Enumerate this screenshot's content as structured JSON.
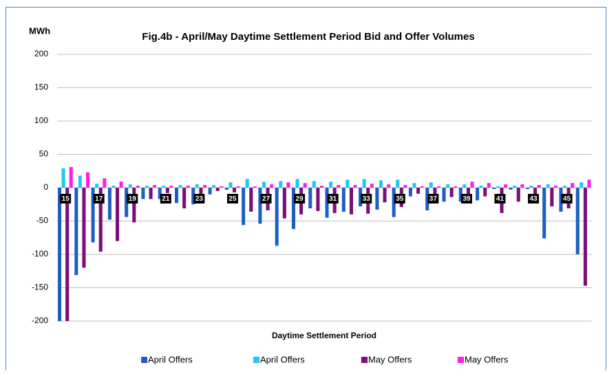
{
  "chart_data": {
    "type": "bar",
    "title": "Fig.4b - April/May Daytime Settlement Period Bid and Offer Volumes",
    "y_label": "MWh",
    "x_label": "Daytime Settlement Period",
    "categories": [
      "15",
      null,
      "17",
      null,
      "19",
      null,
      "21",
      null,
      "23",
      null,
      "25",
      null,
      "27",
      null,
      "29",
      null,
      "31",
      null,
      "33",
      null,
      "35",
      null,
      "37",
      null,
      "39",
      null,
      "41",
      null,
      "43",
      null,
      "45",
      null
    ],
    "series": [
      {
        "name": "April Offers",
        "color": "#1f5fc4",
        "values": [
          -200,
          -131,
          -82,
          -48,
          -44,
          -17,
          -17,
          -23,
          -25,
          -10,
          -3,
          -56,
          -54,
          -87,
          -62,
          -31,
          -45,
          -36,
          -28,
          -33,
          -44,
          -13,
          -34,
          -21,
          -21,
          -19,
          -2,
          -3,
          -2,
          -76,
          -36,
          -100
        ]
      },
      {
        "name": "April Offers",
        "color": "#1ec8f0",
        "values": [
          29,
          18,
          6,
          3,
          5,
          3,
          3,
          4,
          5,
          4,
          8,
          13,
          9,
          10,
          13,
          10,
          9,
          12,
          13,
          11,
          12,
          7,
          8,
          5,
          5,
          3,
          2,
          3,
          3,
          5,
          3,
          8
        ]
      },
      {
        "name": "May Offers",
        "color": "#7a0f78",
        "values": [
          -200,
          -120,
          -96,
          -80,
          -52,
          -17,
          -8,
          -31,
          -23,
          -5,
          -7,
          -36,
          -34,
          -46,
          -40,
          -35,
          -38,
          -40,
          -39,
          -22,
          -29,
          -9,
          -16,
          -14,
          -20,
          -13,
          -38,
          -21,
          -21,
          -28,
          -31,
          -147
        ]
      },
      {
        "name": "May Offers",
        "color": "#ff1ee6",
        "values": [
          31,
          23,
          14,
          9,
          3,
          4,
          3,
          3,
          4,
          2,
          2,
          2,
          5,
          8,
          7,
          3,
          4,
          4,
          6,
          5,
          4,
          2,
          2,
          2,
          9,
          7,
          5,
          5,
          4,
          3,
          7,
          12
        ]
      }
    ],
    "ylim": [
      -200,
      200
    ],
    "yticks": [
      -200,
      -150,
      -100,
      -50,
      0,
      50,
      100,
      150,
      200
    ],
    "grid": true,
    "legend": "bottom"
  }
}
